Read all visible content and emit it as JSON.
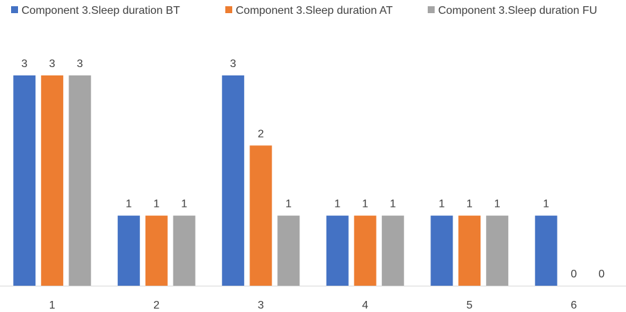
{
  "chart_data": {
    "type": "bar",
    "categories": [
      "1",
      "2",
      "3",
      "4",
      "5",
      "6"
    ],
    "series": [
      {
        "name": "Component 3.Sleep duration BT",
        "values": [
          3,
          1,
          3,
          1,
          1,
          1
        ],
        "color": "#4472C4"
      },
      {
        "name": "Component 3.Sleep duration AT",
        "values": [
          3,
          1,
          2,
          1,
          1,
          0
        ],
        "color": "#ED7D31"
      },
      {
        "name": "Component 3.Sleep duration FU",
        "values": [
          3,
          1,
          1,
          1,
          1,
          0
        ],
        "color": "#A5A5A5"
      }
    ],
    "ylim": [
      0,
      3
    ],
    "legend_position": "top",
    "data_labels": true,
    "grid": false,
    "axis_color": "#D9D9D9"
  }
}
